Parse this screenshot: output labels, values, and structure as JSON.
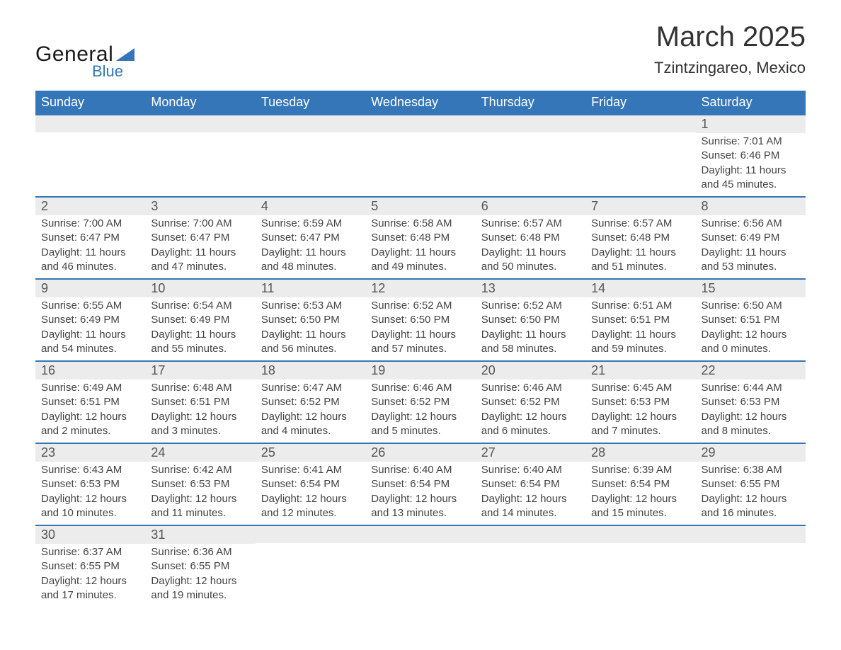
{
  "brand": {
    "word1": "General",
    "word2": "Blue",
    "accent_color": "#3576b8",
    "text_color": "#1a1a1a"
  },
  "title": "March 2025",
  "location": "Tzintzingareo, Mexico",
  "colors": {
    "header_bg": "#3576b8",
    "header_text": "#ffffff",
    "band_bg": "#ececec",
    "row_border": "#3576b8",
    "body_text": "#444444"
  },
  "typography": {
    "title_fontsize": 40,
    "location_fontsize": 22,
    "dayheader_fontsize": 18,
    "daynum_fontsize": 18,
    "body_fontsize": 15,
    "font_family": "Arial"
  },
  "day_headers": [
    "Sunday",
    "Monday",
    "Tuesday",
    "Wednesday",
    "Thursday",
    "Friday",
    "Saturday"
  ],
  "weeks": [
    [
      {
        "day": "",
        "sunrise": "",
        "sunset": "",
        "daylight1": "",
        "daylight2": ""
      },
      {
        "day": "",
        "sunrise": "",
        "sunset": "",
        "daylight1": "",
        "daylight2": ""
      },
      {
        "day": "",
        "sunrise": "",
        "sunset": "",
        "daylight1": "",
        "daylight2": ""
      },
      {
        "day": "",
        "sunrise": "",
        "sunset": "",
        "daylight1": "",
        "daylight2": ""
      },
      {
        "day": "",
        "sunrise": "",
        "sunset": "",
        "daylight1": "",
        "daylight2": ""
      },
      {
        "day": "",
        "sunrise": "",
        "sunset": "",
        "daylight1": "",
        "daylight2": ""
      },
      {
        "day": "1",
        "sunrise": "Sunrise: 7:01 AM",
        "sunset": "Sunset: 6:46 PM",
        "daylight1": "Daylight: 11 hours",
        "daylight2": "and 45 minutes."
      }
    ],
    [
      {
        "day": "2",
        "sunrise": "Sunrise: 7:00 AM",
        "sunset": "Sunset: 6:47 PM",
        "daylight1": "Daylight: 11 hours",
        "daylight2": "and 46 minutes."
      },
      {
        "day": "3",
        "sunrise": "Sunrise: 7:00 AM",
        "sunset": "Sunset: 6:47 PM",
        "daylight1": "Daylight: 11 hours",
        "daylight2": "and 47 minutes."
      },
      {
        "day": "4",
        "sunrise": "Sunrise: 6:59 AM",
        "sunset": "Sunset: 6:47 PM",
        "daylight1": "Daylight: 11 hours",
        "daylight2": "and 48 minutes."
      },
      {
        "day": "5",
        "sunrise": "Sunrise: 6:58 AM",
        "sunset": "Sunset: 6:48 PM",
        "daylight1": "Daylight: 11 hours",
        "daylight2": "and 49 minutes."
      },
      {
        "day": "6",
        "sunrise": "Sunrise: 6:57 AM",
        "sunset": "Sunset: 6:48 PM",
        "daylight1": "Daylight: 11 hours",
        "daylight2": "and 50 minutes."
      },
      {
        "day": "7",
        "sunrise": "Sunrise: 6:57 AM",
        "sunset": "Sunset: 6:48 PM",
        "daylight1": "Daylight: 11 hours",
        "daylight2": "and 51 minutes."
      },
      {
        "day": "8",
        "sunrise": "Sunrise: 6:56 AM",
        "sunset": "Sunset: 6:49 PM",
        "daylight1": "Daylight: 11 hours",
        "daylight2": "and 53 minutes."
      }
    ],
    [
      {
        "day": "9",
        "sunrise": "Sunrise: 6:55 AM",
        "sunset": "Sunset: 6:49 PM",
        "daylight1": "Daylight: 11 hours",
        "daylight2": "and 54 minutes."
      },
      {
        "day": "10",
        "sunrise": "Sunrise: 6:54 AM",
        "sunset": "Sunset: 6:49 PM",
        "daylight1": "Daylight: 11 hours",
        "daylight2": "and 55 minutes."
      },
      {
        "day": "11",
        "sunrise": "Sunrise: 6:53 AM",
        "sunset": "Sunset: 6:50 PM",
        "daylight1": "Daylight: 11 hours",
        "daylight2": "and 56 minutes."
      },
      {
        "day": "12",
        "sunrise": "Sunrise: 6:52 AM",
        "sunset": "Sunset: 6:50 PM",
        "daylight1": "Daylight: 11 hours",
        "daylight2": "and 57 minutes."
      },
      {
        "day": "13",
        "sunrise": "Sunrise: 6:52 AM",
        "sunset": "Sunset: 6:50 PM",
        "daylight1": "Daylight: 11 hours",
        "daylight2": "and 58 minutes."
      },
      {
        "day": "14",
        "sunrise": "Sunrise: 6:51 AM",
        "sunset": "Sunset: 6:51 PM",
        "daylight1": "Daylight: 11 hours",
        "daylight2": "and 59 minutes."
      },
      {
        "day": "15",
        "sunrise": "Sunrise: 6:50 AM",
        "sunset": "Sunset: 6:51 PM",
        "daylight1": "Daylight: 12 hours",
        "daylight2": "and 0 minutes."
      }
    ],
    [
      {
        "day": "16",
        "sunrise": "Sunrise: 6:49 AM",
        "sunset": "Sunset: 6:51 PM",
        "daylight1": "Daylight: 12 hours",
        "daylight2": "and 2 minutes."
      },
      {
        "day": "17",
        "sunrise": "Sunrise: 6:48 AM",
        "sunset": "Sunset: 6:51 PM",
        "daylight1": "Daylight: 12 hours",
        "daylight2": "and 3 minutes."
      },
      {
        "day": "18",
        "sunrise": "Sunrise: 6:47 AM",
        "sunset": "Sunset: 6:52 PM",
        "daylight1": "Daylight: 12 hours",
        "daylight2": "and 4 minutes."
      },
      {
        "day": "19",
        "sunrise": "Sunrise: 6:46 AM",
        "sunset": "Sunset: 6:52 PM",
        "daylight1": "Daylight: 12 hours",
        "daylight2": "and 5 minutes."
      },
      {
        "day": "20",
        "sunrise": "Sunrise: 6:46 AM",
        "sunset": "Sunset: 6:52 PM",
        "daylight1": "Daylight: 12 hours",
        "daylight2": "and 6 minutes."
      },
      {
        "day": "21",
        "sunrise": "Sunrise: 6:45 AM",
        "sunset": "Sunset: 6:53 PM",
        "daylight1": "Daylight: 12 hours",
        "daylight2": "and 7 minutes."
      },
      {
        "day": "22",
        "sunrise": "Sunrise: 6:44 AM",
        "sunset": "Sunset: 6:53 PM",
        "daylight1": "Daylight: 12 hours",
        "daylight2": "and 8 minutes."
      }
    ],
    [
      {
        "day": "23",
        "sunrise": "Sunrise: 6:43 AM",
        "sunset": "Sunset: 6:53 PM",
        "daylight1": "Daylight: 12 hours",
        "daylight2": "and 10 minutes."
      },
      {
        "day": "24",
        "sunrise": "Sunrise: 6:42 AM",
        "sunset": "Sunset: 6:53 PM",
        "daylight1": "Daylight: 12 hours",
        "daylight2": "and 11 minutes."
      },
      {
        "day": "25",
        "sunrise": "Sunrise: 6:41 AM",
        "sunset": "Sunset: 6:54 PM",
        "daylight1": "Daylight: 12 hours",
        "daylight2": "and 12 minutes."
      },
      {
        "day": "26",
        "sunrise": "Sunrise: 6:40 AM",
        "sunset": "Sunset: 6:54 PM",
        "daylight1": "Daylight: 12 hours",
        "daylight2": "and 13 minutes."
      },
      {
        "day": "27",
        "sunrise": "Sunrise: 6:40 AM",
        "sunset": "Sunset: 6:54 PM",
        "daylight1": "Daylight: 12 hours",
        "daylight2": "and 14 minutes."
      },
      {
        "day": "28",
        "sunrise": "Sunrise: 6:39 AM",
        "sunset": "Sunset: 6:54 PM",
        "daylight1": "Daylight: 12 hours",
        "daylight2": "and 15 minutes."
      },
      {
        "day": "29",
        "sunrise": "Sunrise: 6:38 AM",
        "sunset": "Sunset: 6:55 PM",
        "daylight1": "Daylight: 12 hours",
        "daylight2": "and 16 minutes."
      }
    ],
    [
      {
        "day": "30",
        "sunrise": "Sunrise: 6:37 AM",
        "sunset": "Sunset: 6:55 PM",
        "daylight1": "Daylight: 12 hours",
        "daylight2": "and 17 minutes."
      },
      {
        "day": "31",
        "sunrise": "Sunrise: 6:36 AM",
        "sunset": "Sunset: 6:55 PM",
        "daylight1": "Daylight: 12 hours",
        "daylight2": "and 19 minutes."
      },
      {
        "day": "",
        "sunrise": "",
        "sunset": "",
        "daylight1": "",
        "daylight2": ""
      },
      {
        "day": "",
        "sunrise": "",
        "sunset": "",
        "daylight1": "",
        "daylight2": ""
      },
      {
        "day": "",
        "sunrise": "",
        "sunset": "",
        "daylight1": "",
        "daylight2": ""
      },
      {
        "day": "",
        "sunrise": "",
        "sunset": "",
        "daylight1": "",
        "daylight2": ""
      },
      {
        "day": "",
        "sunrise": "",
        "sunset": "",
        "daylight1": "",
        "daylight2": ""
      }
    ]
  ]
}
